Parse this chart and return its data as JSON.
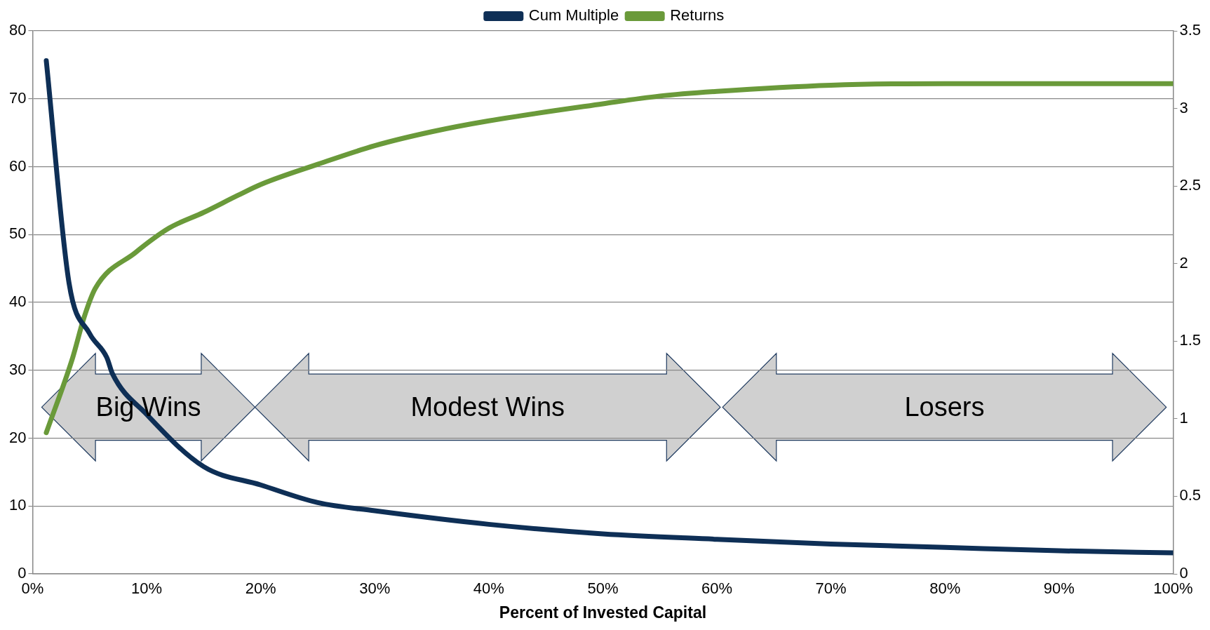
{
  "chart_data": {
    "type": "line",
    "xlabel": "Percent of Invested Capital",
    "x": [
      1.2,
      3.2,
      5,
      6.5,
      7,
      10,
      15,
      20,
      25,
      30,
      40,
      50,
      60,
      70,
      80,
      90,
      100
    ],
    "series": [
      {
        "name": "Cum Multiple",
        "color": "#0e2f56",
        "values": [
          75.6,
          42.8,
          35.4,
          31.9,
          29.5,
          23.5,
          15.8,
          13.1,
          10.5,
          9.3,
          7.3,
          5.9,
          5.1,
          4.4,
          3.9,
          3.4,
          3.1
        ]
      },
      {
        "name": "Returns",
        "color": "#6a9a3a",
        "axis": "y2",
        "x": [
          1.2,
          3.5,
          4.5,
          5.5,
          9,
          12,
          15,
          18,
          20,
          25,
          30,
          35,
          40,
          50,
          55,
          60,
          70,
          80,
          100
        ],
        "values": [
          0.91,
          1.39,
          1.65,
          1.84,
          2.07,
          2.23,
          2.33,
          2.44,
          2.51,
          2.64,
          2.76,
          2.85,
          2.92,
          3.03,
          3.08,
          3.11,
          3.15,
          3.16,
          3.16
        ]
      }
    ],
    "xlim": [
      0,
      100
    ],
    "xticks": [
      {
        "value": 0,
        "label": "0%"
      },
      {
        "value": 10,
        "label": "10%"
      },
      {
        "value": 20,
        "label": "20%"
      },
      {
        "value": 30,
        "label": "30%"
      },
      {
        "value": 40,
        "label": "40%"
      },
      {
        "value": 50,
        "label": "50%"
      },
      {
        "value": 60,
        "label": "60%"
      },
      {
        "value": 70,
        "label": "70%"
      },
      {
        "value": 80,
        "label": "80%"
      },
      {
        "value": 90,
        "label": "90%"
      },
      {
        "value": 100,
        "label": "100%"
      }
    ],
    "ylim": [
      0,
      80
    ],
    "yticks": [
      0,
      10,
      20,
      30,
      40,
      50,
      60,
      70,
      80
    ],
    "y2lim": [
      0,
      3.5
    ],
    "y2ticks": [
      0,
      0.5,
      1,
      1.5,
      2,
      2.5,
      3,
      3.5
    ],
    "annotations": [
      "Big Wins",
      "Modest Wins",
      "Losers"
    ],
    "grid": "y",
    "legend": "top",
    "marker": "none",
    "line_style": "solid"
  }
}
